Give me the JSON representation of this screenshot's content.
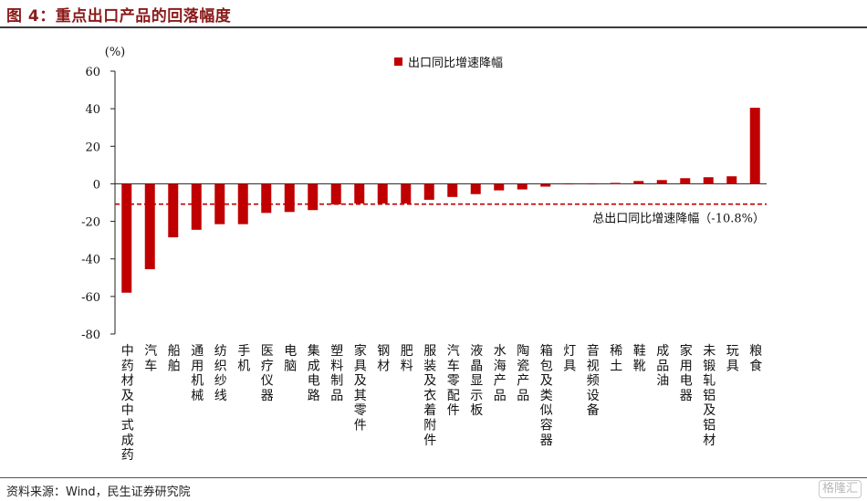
{
  "header": {
    "title": "图 4：重点出口产品的回落幅度"
  },
  "footer": {
    "source": "资料来源：Wind，民生证券研究院",
    "watermark": "格隆汇"
  },
  "colors": {
    "bar": "#c00000",
    "axis": "#222222",
    "reference": "#c00000"
  },
  "chart_data": {
    "type": "bar",
    "unit_label": "(%)",
    "ylim": [
      -80,
      60
    ],
    "yticks": [
      60,
      40,
      20,
      0,
      -20,
      -40,
      -60,
      -80
    ],
    "grid": false,
    "legend": {
      "position": "top-center",
      "series_name": "出口同比增速降幅"
    },
    "categories": [
      "中药材及中式成药",
      "汽车",
      "船舶",
      "通用机械",
      "纺织纱线",
      "手机",
      "医疗仪器",
      "电脑",
      "集成电路",
      "塑料制品",
      "家具及其零件",
      "钢材",
      "肥料",
      "服装及衣着附件",
      "汽车零配件",
      "液晶显示板",
      "水海产品",
      "陶瓷产品",
      "箱包及类似容器",
      "灯具",
      "音视频设备",
      "稀土",
      "鞋靴",
      "成品油",
      "家用电器",
      "未锻轧铝及铝材",
      "玩具",
      "粮食"
    ],
    "series": [
      {
        "name": "出口同比增速降幅",
        "values": [
          -58,
          -45.5,
          -28.5,
          -24.5,
          -21.5,
          -21.5,
          -15.5,
          -15,
          -14,
          -11,
          -10.5,
          -10.5,
          -10.5,
          -8.5,
          -7,
          -5.5,
          -3.5,
          -3,
          -1.5,
          -0.3,
          -0.2,
          0.5,
          1.5,
          2,
          3,
          3.5,
          4,
          40.5
        ]
      }
    ],
    "reference_line": {
      "value": -10.8,
      "label": "总出口同比增速降幅（-10.8%）"
    }
  }
}
